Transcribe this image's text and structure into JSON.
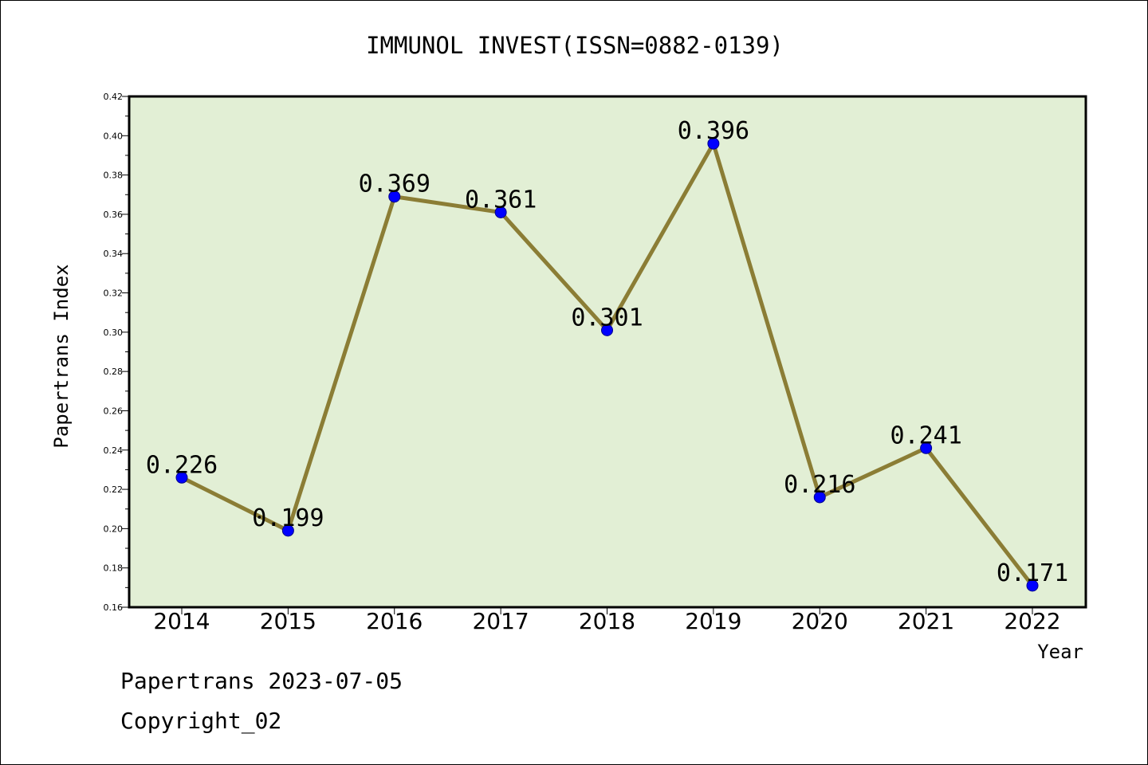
{
  "chart_data": {
    "type": "line",
    "title": "IMMUNOL INVEST(ISSN=0882-0139)",
    "xlabel": "Year",
    "ylabel": "Papertrans Index",
    "categories": [
      "2014",
      "2015",
      "2016",
      "2017",
      "2018",
      "2019",
      "2020",
      "2021",
      "2022"
    ],
    "values": [
      0.226,
      0.199,
      0.369,
      0.361,
      0.301,
      0.396,
      0.216,
      0.241,
      0.171
    ],
    "data_labels": [
      "0.226",
      "0.199",
      "0.369",
      "0.361",
      "0.301",
      "0.396",
      "0.216",
      "0.241",
      "0.171"
    ],
    "ylim": [
      0.16,
      0.42
    ],
    "yticks": [
      "0.16",
      "0.18",
      "0.20",
      "0.22",
      "0.24",
      "0.26",
      "0.28",
      "0.30",
      "0.32",
      "0.34",
      "0.36",
      "0.38",
      "0.40",
      "0.42"
    ],
    "grid": false,
    "colors": {
      "plot_background": "#e2efd5",
      "line": "#8b7d35",
      "marker_fill": "#0000ff",
      "marker_edge": "#00008b",
      "frame": "#000000"
    }
  },
  "footer": {
    "source": "Papertrans 2023-07-05",
    "copyright": "Copyright_02"
  }
}
